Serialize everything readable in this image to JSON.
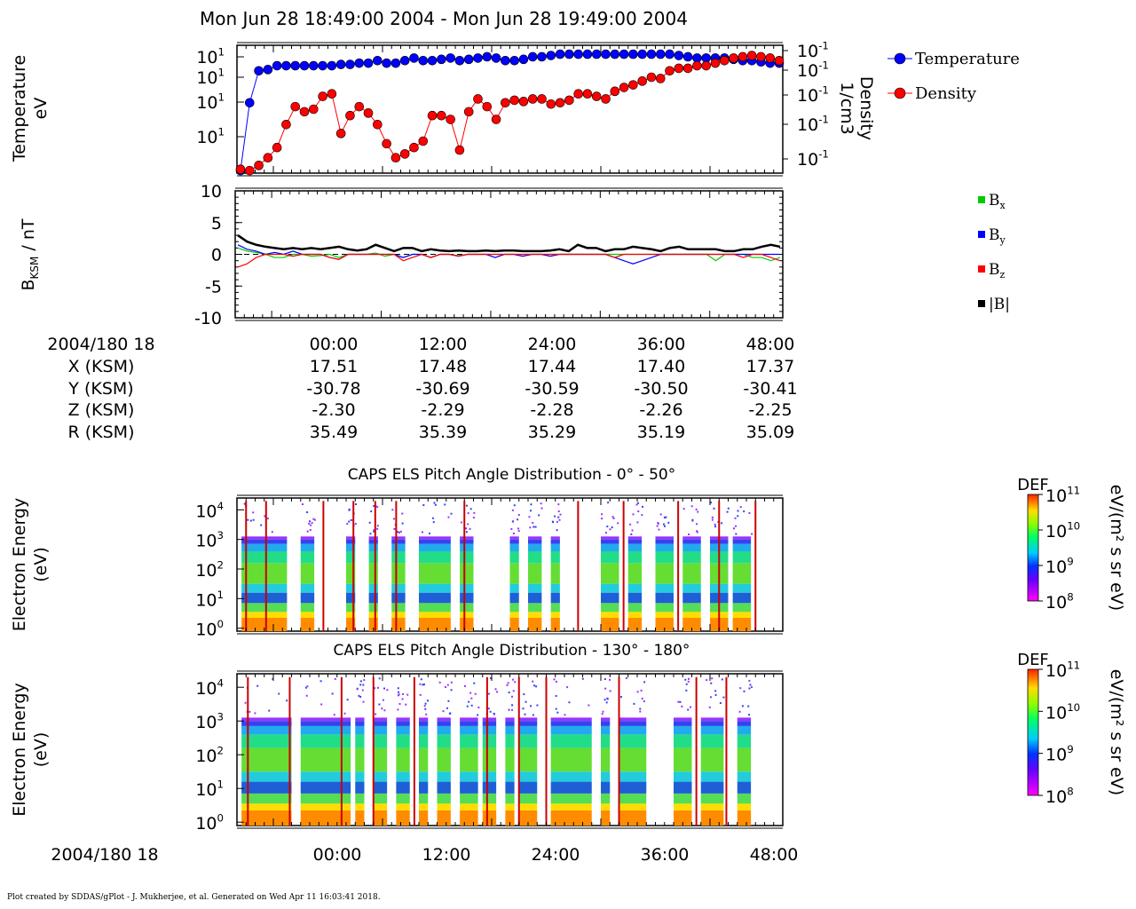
{
  "title": "Mon Jun 28 18:49:00 2004 - Mon Jun 28 19:49:00 2004",
  "footer": "Plot created by SDDAS/gPlot - J. Mukherjee, et al.  Generated on Wed Apr 11 16:03:41 2018.",
  "colors": {
    "temperature": "#0000ff",
    "density": "#ff0000",
    "bx": "#00cc00",
    "by": "#0000ff",
    "bz": "#ff0000",
    "btot": "#000000"
  },
  "chart_data": [
    {
      "type": "line",
      "panel": "moments",
      "ylabel": [
        "Temperature",
        "eV"
      ],
      "y2label": [
        "Density",
        "1/cm3"
      ],
      "yticks_left": [
        "10",
        "10",
        "10",
        "10"
      ],
      "yticks_left_exp": [
        "1",
        "1",
        "1",
        "1"
      ],
      "yticks_right": [
        "10",
        "10",
        "10",
        "10",
        "10"
      ],
      "yticks_right_exp": [
        "-1",
        "-1",
        "-1",
        "-1",
        "-1"
      ],
      "legend_placement": "right",
      "x_minutes": [
        0,
        1,
        2,
        3,
        4,
        5,
        6,
        7,
        8,
        9,
        10,
        11,
        12,
        13,
        14,
        15,
        16,
        17,
        18,
        19,
        20,
        21,
        22,
        23,
        24,
        25,
        26,
        27,
        28,
        29,
        30,
        31,
        32,
        33,
        34,
        35,
        36,
        37,
        38,
        39,
        40,
        41,
        42,
        43,
        44,
        45,
        46,
        47,
        48,
        49,
        50,
        51,
        52,
        53,
        54,
        55,
        56,
        57,
        58,
        59
      ],
      "series": [
        {
          "name": "Temperature",
          "color": "#0000ff",
          "values": [
            0.02,
            0.55,
            0.8,
            0.81,
            0.84,
            0.84,
            0.84,
            0.84,
            0.84,
            0.84,
            0.84,
            0.85,
            0.85,
            0.86,
            0.86,
            0.88,
            0.86,
            0.86,
            0.88,
            0.9,
            0.88,
            0.88,
            0.89,
            0.9,
            0.88,
            0.89,
            0.9,
            0.91,
            0.9,
            0.88,
            0.88,
            0.89,
            0.91,
            0.91,
            0.92,
            0.93,
            0.93,
            0.93,
            0.93,
            0.93,
            0.93,
            0.93,
            0.93,
            0.93,
            0.93,
            0.93,
            0.93,
            0.93,
            0.92,
            0.91,
            0.9,
            0.9,
            0.9,
            0.9,
            0.89,
            0.88,
            0.88,
            0.87,
            0.86,
            0.86
          ]
        },
        {
          "name": "Density",
          "color": "#ff0000",
          "values": [
            0.03,
            0.02,
            0.06,
            0.12,
            0.2,
            0.38,
            0.52,
            0.48,
            0.5,
            0.6,
            0.62,
            0.31,
            0.45,
            0.52,
            0.47,
            0.38,
            0.23,
            0.12,
            0.15,
            0.2,
            0.25,
            0.45,
            0.45,
            0.42,
            0.18,
            0.48,
            0.58,
            0.52,
            0.42,
            0.55,
            0.57,
            0.56,
            0.58,
            0.58,
            0.54,
            0.55,
            0.57,
            0.62,
            0.62,
            0.6,
            0.58,
            0.64,
            0.67,
            0.69,
            0.72,
            0.75,
            0.74,
            0.8,
            0.82,
            0.82,
            0.84,
            0.84,
            0.86,
            0.88,
            0.9,
            0.91,
            0.92,
            0.91,
            0.9,
            0.88
          ]
        }
      ]
    },
    {
      "type": "line",
      "panel": "magnetic field",
      "ylabel": "B KSM / nT",
      "ylabel_main": "B",
      "ylabel_sub": "KSM",
      "ylabel_unit": " / nT",
      "ylim": [
        -10,
        10
      ],
      "yticks": [
        "10",
        "5",
        "0",
        "-5",
        "-10"
      ],
      "yticks_values": [
        10,
        5,
        0,
        -5,
        -10
      ],
      "x_range_minutes": [
        0,
        60
      ],
      "legend_placement": "right",
      "series": [
        {
          "name": "B",
          "sub": "x",
          "color": "#00cc00",
          "values": [
            1.0,
            0.5,
            0.3,
            0.0,
            -0.5,
            -0.5,
            0.0,
            0.0,
            -0.3,
            -0.2,
            0.0,
            -0.5,
            0.0,
            0.0,
            0.0,
            0.2,
            -0.3,
            0.0,
            -0.5,
            0.0,
            0.0,
            -0.5,
            0.0,
            0.0,
            -0.2,
            0.0,
            0.0,
            0.0,
            0.0,
            0.0,
            0.0,
            0.0,
            0.0,
            0.0,
            0.0,
            0.0,
            0.0,
            0.0,
            0.0,
            0.0,
            0.0,
            0.0,
            0.0,
            0.0,
            0.0,
            0.0,
            0.0,
            0.0,
            0.0,
            0.0,
            0.0,
            0.0,
            -1.0,
            0.0,
            0.0,
            0.0,
            -0.5,
            -0.5,
            -1.0,
            -0.5
          ]
        },
        {
          "name": "B",
          "sub": "y",
          "color": "#0000ff",
          "values": [
            1.5,
            0.8,
            0.5,
            0.0,
            0.3,
            0.0,
            0.5,
            0.0,
            0.0,
            0.0,
            -0.5,
            -0.8,
            0.0,
            0.0,
            0.0,
            0.0,
            0.0,
            0.0,
            -0.5,
            0.0,
            0.0,
            -0.5,
            0.0,
            0.0,
            -0.3,
            0.0,
            0.0,
            0.0,
            -0.5,
            0.0,
            0.0,
            -0.3,
            0.0,
            0.0,
            -0.3,
            0.0,
            0.0,
            0.0,
            0.0,
            0.0,
            0.0,
            -0.5,
            -1.0,
            -1.5,
            -1.0,
            -0.5,
            0.0,
            0.0,
            0.0,
            0.0,
            0.0,
            0.0,
            0.0,
            0.0,
            0.0,
            0.0,
            0.0,
            0.0,
            0.0,
            0.0
          ]
        },
        {
          "name": "B",
          "sub": "z",
          "color": "#ff0000",
          "values": [
            -2.0,
            -1.5,
            -0.5,
            0.0,
            0.0,
            0.0,
            -0.3,
            0.0,
            0.0,
            0.0,
            -0.5,
            -0.8,
            0.0,
            0.0,
            0.0,
            0.0,
            0.0,
            0.0,
            -1.0,
            -0.5,
            0.0,
            -0.5,
            0.0,
            0.0,
            -0.3,
            0.0,
            0.0,
            0.0,
            0.0,
            0.0,
            0.0,
            0.0,
            0.0,
            0.0,
            0.0,
            0.0,
            0.0,
            0.0,
            0.0,
            0.0,
            0.0,
            -0.5,
            0.0,
            0.0,
            0.0,
            0.0,
            0.0,
            0.0,
            0.0,
            0.0,
            0.0,
            0.0,
            0.0,
            0.0,
            0.0,
            -0.5,
            0.0,
            0.0,
            -0.5,
            -1.0
          ]
        },
        {
          "name": "|B|",
          "sub": "",
          "color": "#000000",
          "values": [
            3.0,
            2.0,
            1.5,
            1.2,
            1.0,
            0.8,
            1.0,
            0.8,
            1.0,
            0.8,
            1.0,
            1.2,
            0.8,
            0.6,
            0.8,
            1.5,
            1.0,
            0.5,
            1.0,
            1.0,
            0.5,
            0.8,
            0.6,
            0.5,
            0.6,
            0.5,
            0.5,
            0.6,
            0.5,
            0.6,
            0.6,
            0.5,
            0.5,
            0.5,
            0.6,
            0.8,
            0.5,
            1.5,
            1.0,
            1.0,
            0.5,
            0.8,
            0.8,
            1.2,
            1.0,
            0.8,
            0.5,
            1.0,
            1.2,
            0.8,
            0.8,
            0.8,
            0.8,
            0.5,
            0.5,
            0.8,
            0.8,
            1.2,
            1.5,
            1.2
          ]
        }
      ]
    },
    {
      "type": "table",
      "panel": "ephemeris",
      "row_labels": [
        "2004/180 18",
        "X (KSM)",
        "Y (KSM)",
        "Z (KSM)",
        "R (KSM)"
      ],
      "columns": [
        "00:00",
        "12:00",
        "24:00",
        "36:00",
        "48:00"
      ],
      "rows": [
        [
          "17.51",
          "17.48",
          "17.44",
          "17.40",
          "17.37"
        ],
        [
          "-30.78",
          "-30.69",
          "-30.59",
          "-30.50",
          "-30.41"
        ],
        [
          "-2.30",
          "-2.29",
          "-2.28",
          "-2.26",
          "-2.25"
        ],
        [
          "35.49",
          "35.39",
          "35.29",
          "35.19",
          "35.09"
        ]
      ]
    },
    {
      "type": "heatmap",
      "panel": "pitch angle 0-50",
      "title": "CAPS ELS Pitch Angle Distribution - 0° - 50°",
      "ylabel": [
        "Electron Energy",
        "(eV)"
      ],
      "yticks": [
        "10",
        "10",
        "10",
        "10",
        "10"
      ],
      "yticks_exp": [
        "4",
        "3",
        "2",
        "1",
        "0"
      ],
      "ylim_log10": [
        -0.1,
        4.4
      ],
      "colorbar_label": "DEF",
      "colorbar_unit": "eV/(m² s sr eV)",
      "colorbar_ticks": [
        "10",
        "10",
        "10",
        "10"
      ],
      "colorbar_ticks_exp": [
        "11",
        "10",
        "9",
        "8"
      ],
      "data_intervals_minutes": [
        [
          0.5,
          5.5
        ],
        [
          7.0,
          8.5
        ],
        [
          12.0,
          13.0
        ],
        [
          14.5,
          15.5
        ],
        [
          17.0,
          18.5
        ],
        [
          20.0,
          23.5
        ],
        [
          24.5,
          26.0
        ],
        [
          30.0,
          31.0
        ],
        [
          32.0,
          33.5
        ],
        [
          34.5,
          35.5
        ],
        [
          40.0,
          42.0
        ],
        [
          43.0,
          44.5
        ],
        [
          46.0,
          48.0
        ],
        [
          49.0,
          51.0
        ],
        [
          52.0,
          54.0
        ],
        [
          54.5,
          56.5
        ]
      ],
      "spike_minutes": [
        1.0,
        3.2,
        9.5,
        12.8,
        15.2,
        17.5,
        25.0,
        37.5,
        42.5,
        48.5,
        53.0,
        57.0
      ]
    },
    {
      "type": "heatmap",
      "panel": "pitch angle 130-180",
      "title": "CAPS ELS Pitch Angle Distribution - 130° - 180°",
      "ylabel": [
        "Electron Energy",
        "(eV)"
      ],
      "yticks": [
        "10",
        "10",
        "10",
        "10",
        "10"
      ],
      "yticks_exp": [
        "4",
        "3",
        "2",
        "1",
        "0"
      ],
      "ylim_log10": [
        -0.1,
        4.4
      ],
      "colorbar_label": "DEF",
      "colorbar_unit": "eV/(m² s sr eV)",
      "colorbar_ticks": [
        "10",
        "10",
        "10",
        "10"
      ],
      "colorbar_ticks_exp": [
        "11",
        "10",
        "9",
        "8"
      ],
      "data_intervals_minutes": [
        [
          0.5,
          6.0
        ],
        [
          7.0,
          12.5
        ],
        [
          13.0,
          14.0
        ],
        [
          15.0,
          16.5
        ],
        [
          17.5,
          19.0
        ],
        [
          20.0,
          21.0
        ],
        [
          22.0,
          23.5
        ],
        [
          24.5,
          26.5
        ],
        [
          27.0,
          28.5
        ],
        [
          29.5,
          30.5
        ],
        [
          31.0,
          33.0
        ],
        [
          34.5,
          39.0
        ],
        [
          40.0,
          41.0
        ],
        [
          42.0,
          45.0
        ],
        [
          48.0,
          50.0
        ],
        [
          51.0,
          53.5
        ],
        [
          55.0,
          56.5
        ]
      ],
      "spike_minutes": [
        1.2,
        5.8,
        11.5,
        15.0,
        19.5,
        27.5,
        31.0,
        34.0,
        42.0,
        50.5,
        53.8
      ]
    },
    {
      "type": "axis",
      "panel": "bottom time axis",
      "row_label": "2004/180 18",
      "ticks": [
        "00:00",
        "12:00",
        "24:00",
        "36:00",
        "48:00"
      ]
    }
  ]
}
